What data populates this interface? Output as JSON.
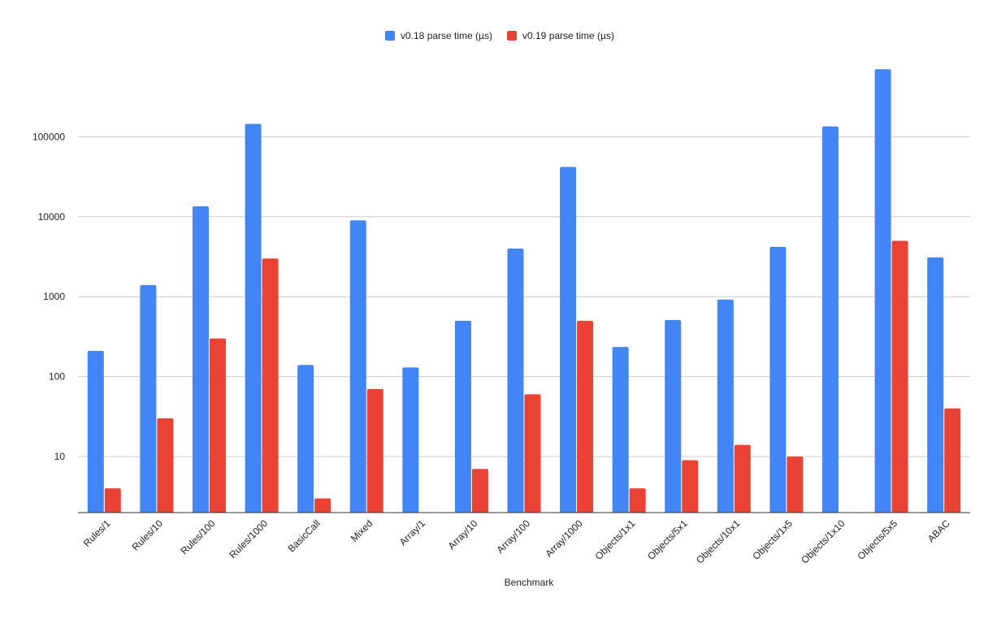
{
  "chart_data": {
    "type": "bar",
    "title": "",
    "xlabel": "Benchmark",
    "ylabel": "",
    "y_scale": "log",
    "ylim": [
      2,
      1000000
    ],
    "y_ticks": [
      10,
      100,
      1000,
      10000,
      100000
    ],
    "y_tick_labels": [
      "10",
      "100",
      "1000",
      "10000",
      "100000"
    ],
    "grid": true,
    "legend": "top-center",
    "categories": [
      "Rules/1",
      "Rules/10",
      "Rules/100",
      "Rules/1000",
      "BasicCall",
      "Mixed",
      "Array/1",
      "Array/10",
      "Array/100",
      "Array/1000",
      "Objects/1x1",
      "Objects/5x1",
      "Objects/10x1",
      "Objects/1x5",
      "Objects/1x10",
      "Objects/5x5",
      "ABAC"
    ],
    "series": [
      {
        "name": "v0.18 parse time (µs)",
        "color": "#4285f4",
        "values": [
          210,
          1400,
          13500,
          145000,
          140,
          9000,
          130,
          500,
          4000,
          42000,
          235,
          510,
          920,
          4200,
          135000,
          700000,
          3100
        ]
      },
      {
        "name": "v0.19 parse time (µs)",
        "color": "#ea4335",
        "values": [
          4,
          30,
          300,
          3000,
          3,
          70,
          null,
          7,
          60,
          500,
          4,
          9,
          14,
          10,
          null,
          5000,
          40
        ]
      }
    ]
  }
}
